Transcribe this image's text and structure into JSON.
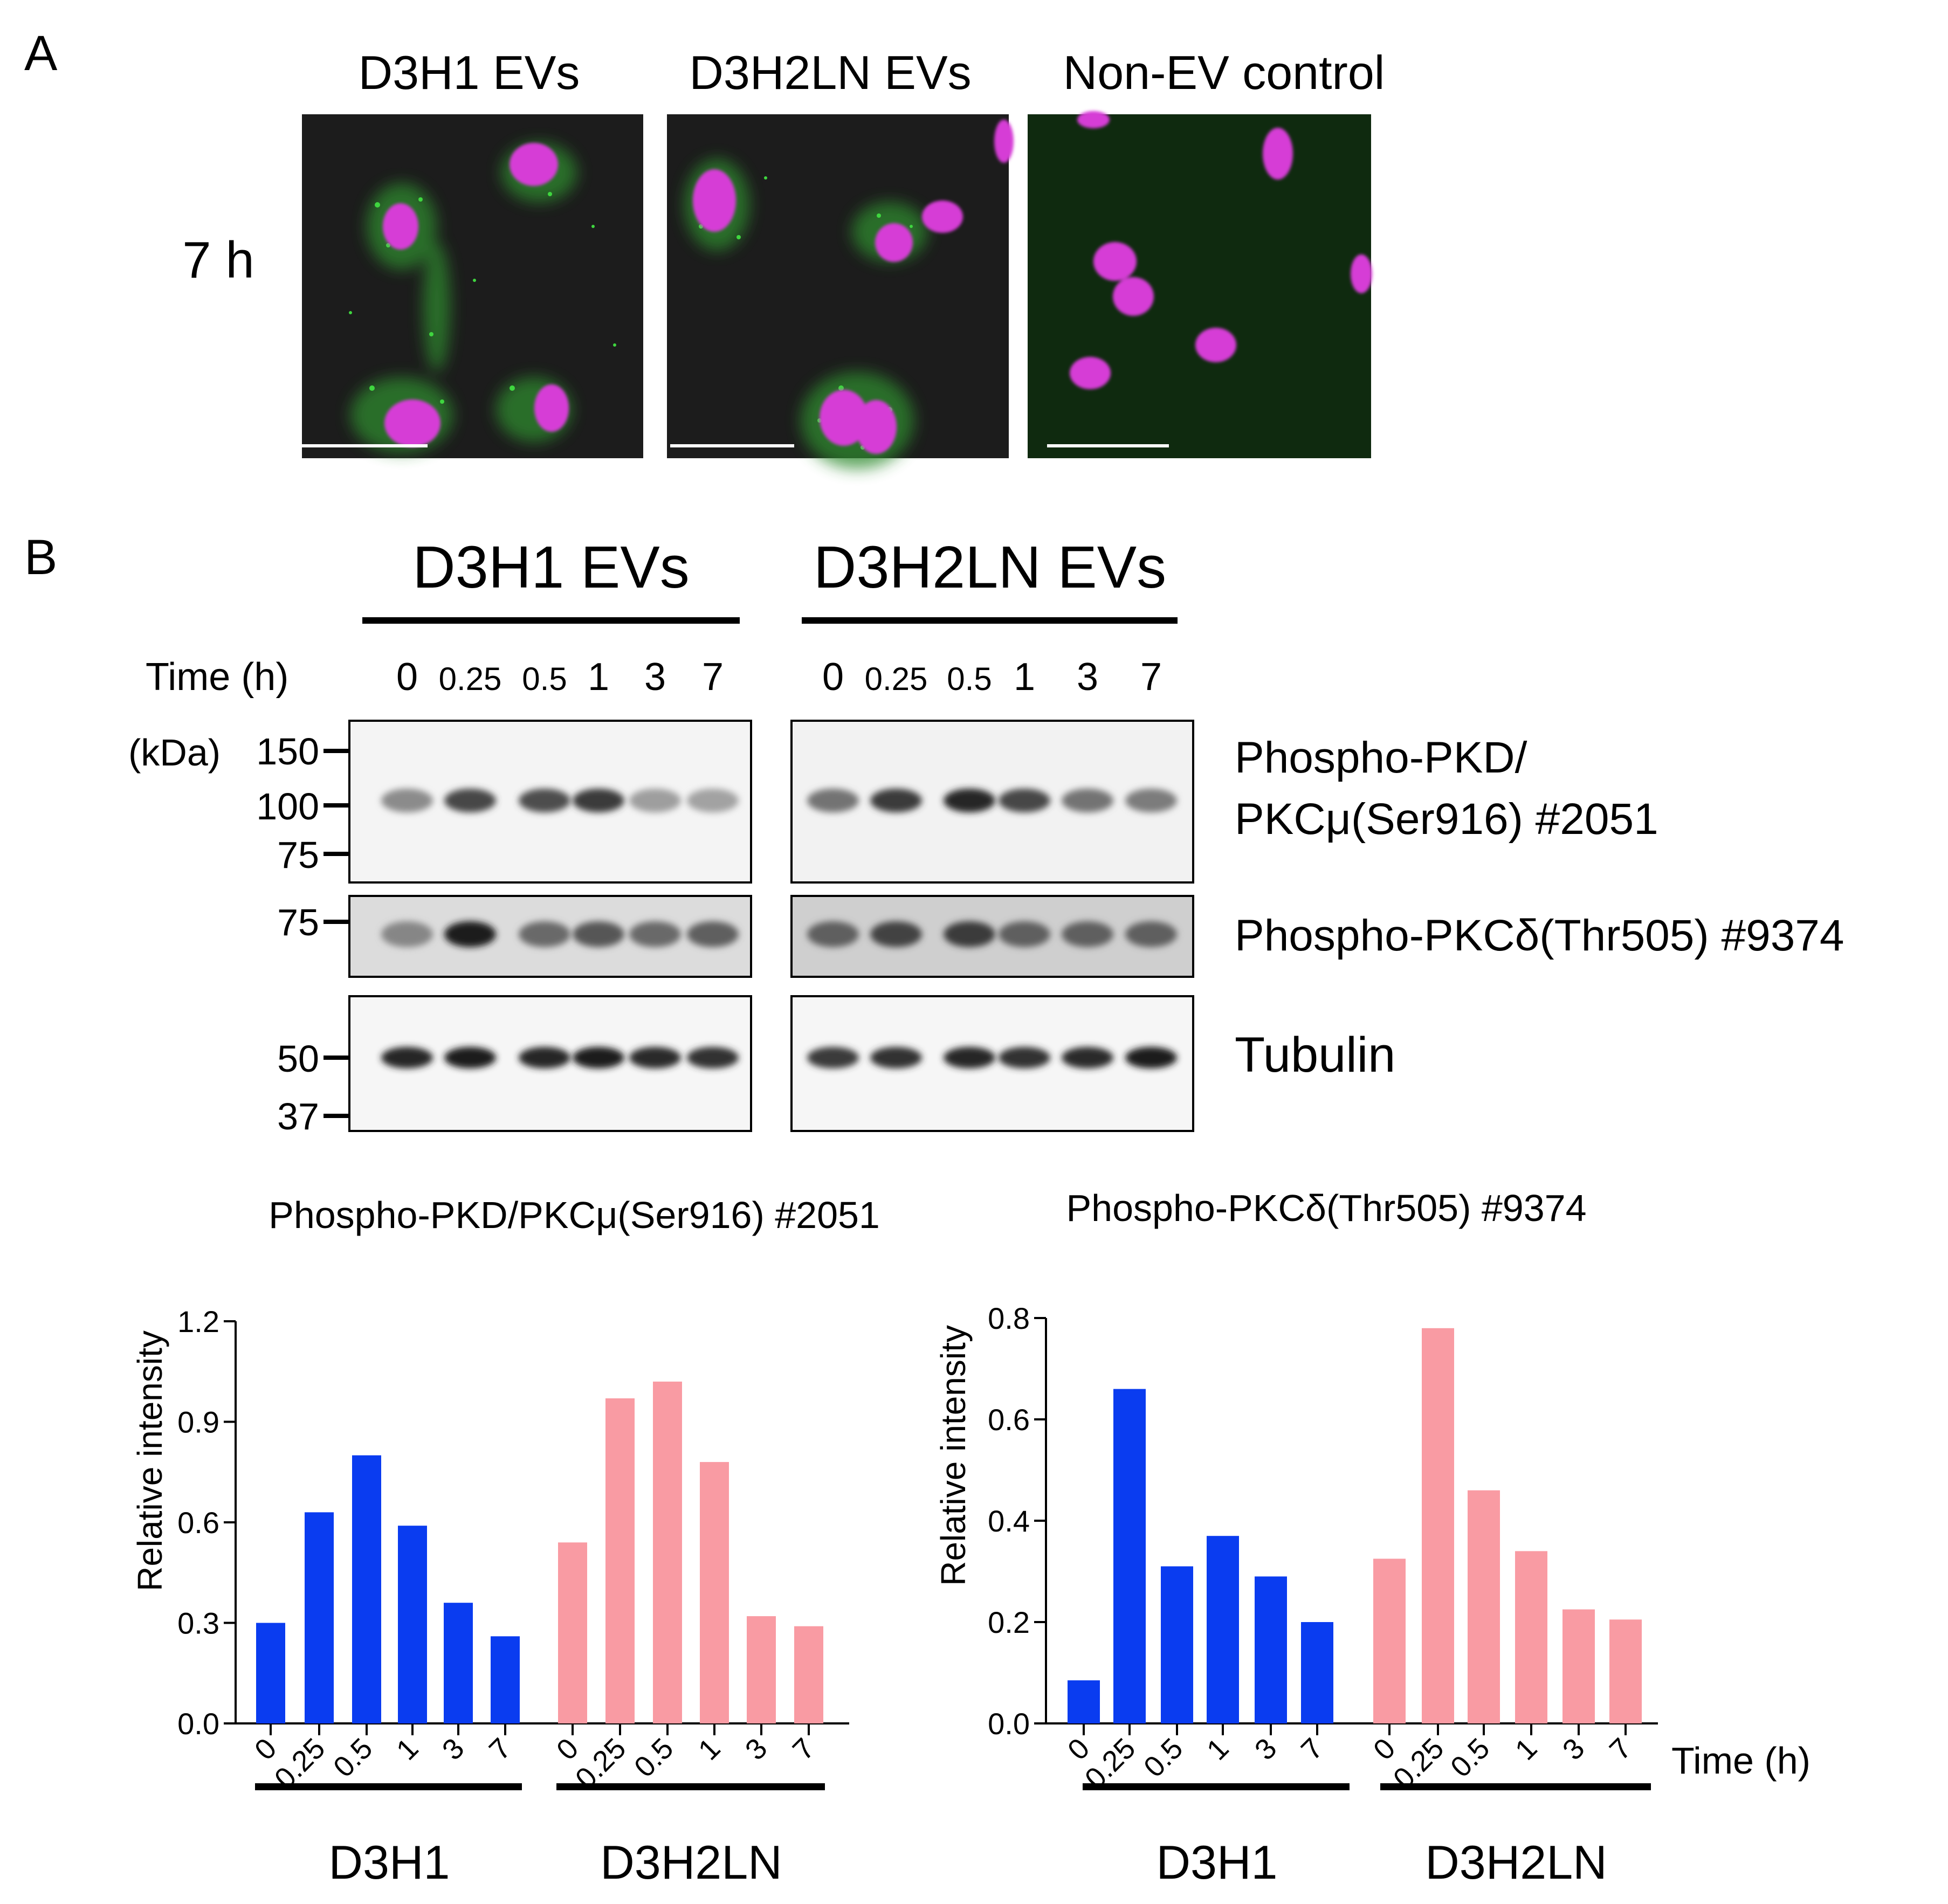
{
  "panelA": {
    "label": "A",
    "time_label": "7 h",
    "columns": [
      "D3H1 EVs",
      "D3H2LN EVs",
      "Non-EV control"
    ]
  },
  "panelB": {
    "label": "B",
    "groups": [
      "D3H1 EVs",
      "D3H2LN EVs"
    ],
    "time_header": "Time (h)",
    "times": [
      "0",
      "0.25",
      "0.5",
      "1",
      "3",
      "7"
    ],
    "kda_label": "(kDa)",
    "markers": {
      "top": [
        "150",
        "100",
        "75"
      ],
      "mid": [
        "75"
      ],
      "bottom": [
        "50",
        "37"
      ]
    },
    "blot_labels": {
      "top_line1": "Phospho-PKD/",
      "top_line2": "PKCμ(Ser916) #2051",
      "mid": "Phospho-PKCδ(Thr505) #9374",
      "bottom": "Tubulin"
    },
    "band_intensity": {
      "pkd": [
        0.32,
        0.68,
        0.65,
        0.75,
        0.22,
        0.2,
        0.45,
        0.75,
        0.85,
        0.68,
        0.45,
        0.4
      ],
      "pkc": [
        0.35,
        0.9,
        0.5,
        0.6,
        0.5,
        0.55,
        0.55,
        0.7,
        0.75,
        0.55,
        0.55,
        0.55
      ],
      "tubulin": [
        0.85,
        0.9,
        0.85,
        0.9,
        0.82,
        0.8,
        0.75,
        0.8,
        0.85,
        0.8,
        0.82,
        0.9
      ]
    }
  },
  "colors": {
    "d3h1": "#0a3cf0",
    "d3h2ln": "#f99ba3"
  },
  "chart_data": [
    {
      "type": "bar",
      "title": "Phospho-PKD/PKCμ(Ser916) #2051",
      "ylabel": "Relative intensity",
      "xlabel": "",
      "ylim": [
        0,
        1.2
      ],
      "yticks": [
        "0.0",
        "0.3",
        "0.6",
        "0.9",
        "1.2"
      ],
      "categories": [
        "0",
        "0.25",
        "0.5",
        "1",
        "3",
        "7"
      ],
      "series": [
        {
          "name": "D3H1",
          "values": [
            0.3,
            0.63,
            0.8,
            0.59,
            0.36,
            0.26
          ]
        },
        {
          "name": "D3H2LN",
          "values": [
            0.54,
            0.97,
            1.02,
            0.78,
            0.32,
            0.29
          ]
        }
      ]
    },
    {
      "type": "bar",
      "title": "Phospho-PKCδ(Thr505) #9374",
      "ylabel": "Relative intensity",
      "xlabel": "Time (h)",
      "ylim": [
        0,
        0.8
      ],
      "yticks": [
        "0.0",
        "0.2",
        "0.4",
        "0.6",
        "0.8"
      ],
      "categories": [
        "0",
        "0.25",
        "0.5",
        "1",
        "3",
        "7"
      ],
      "series": [
        {
          "name": "D3H1",
          "values": [
            0.085,
            0.66,
            0.31,
            0.37,
            0.29,
            0.2
          ]
        },
        {
          "name": "D3H2LN",
          "values": [
            0.325,
            0.78,
            0.46,
            0.34,
            0.225,
            0.205
          ]
        }
      ]
    }
  ]
}
